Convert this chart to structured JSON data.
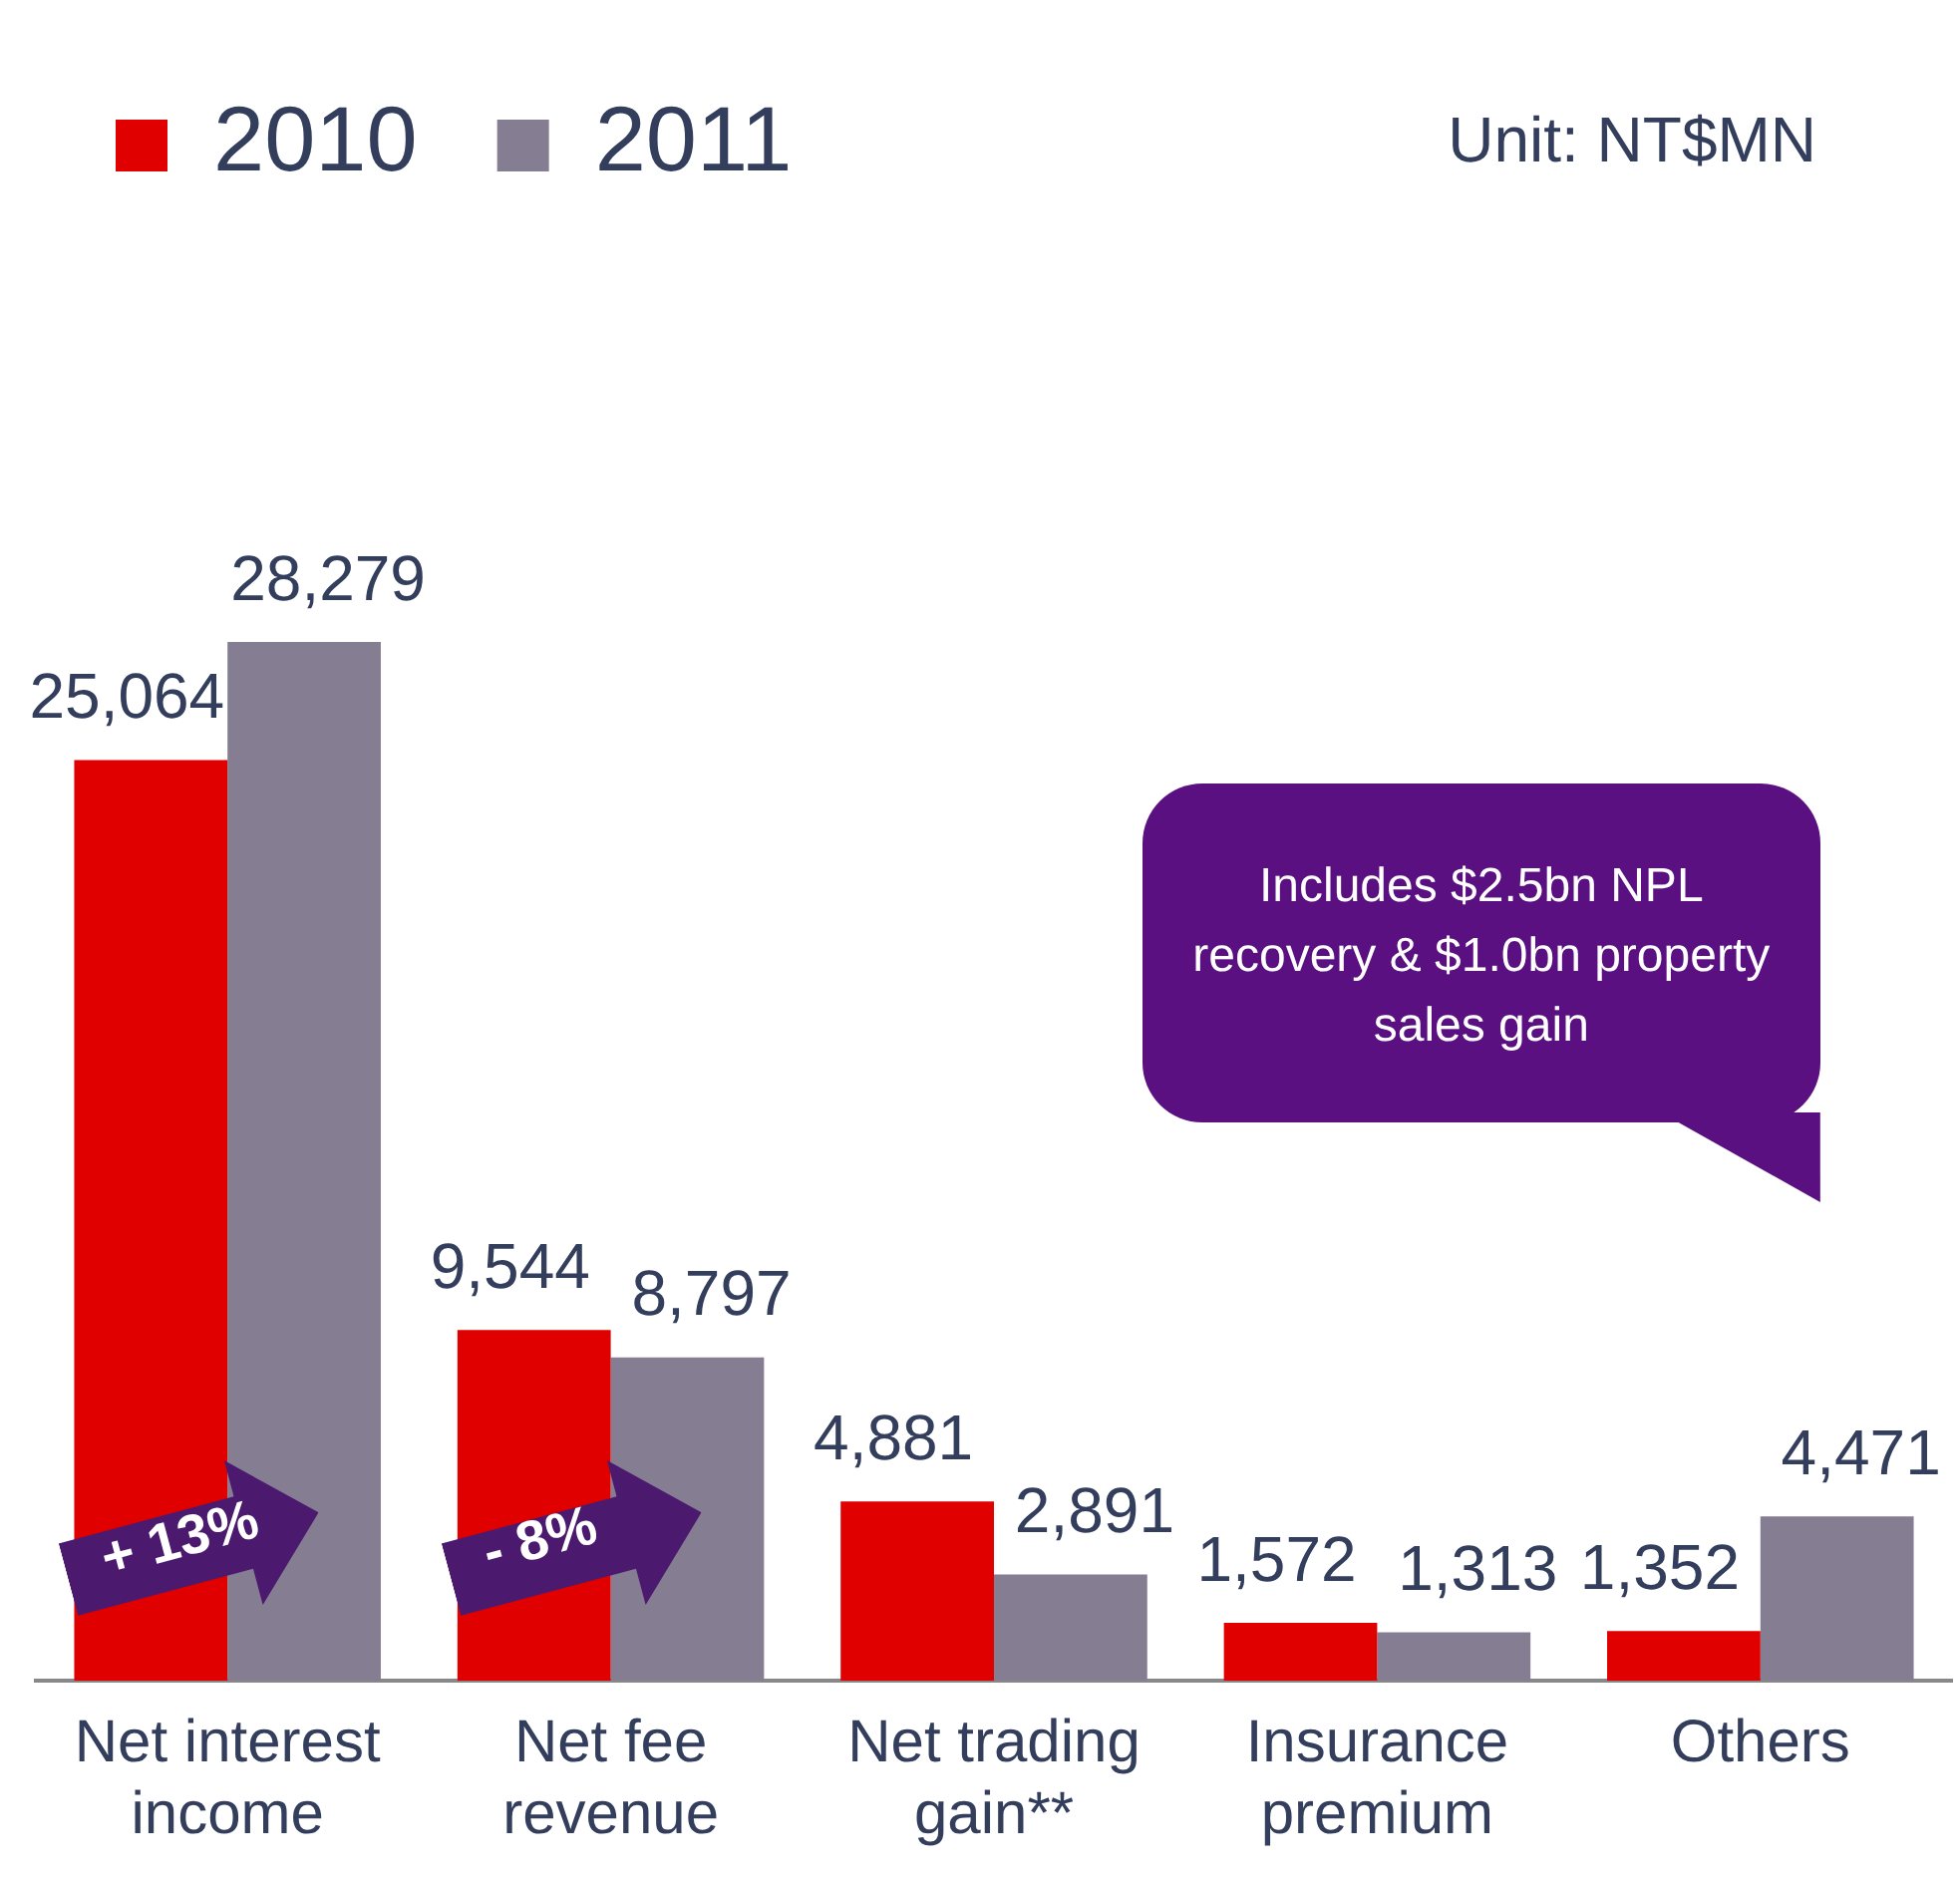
{
  "chart_data": {
    "type": "bar",
    "categories": [
      "Net interest income",
      "Net fee revenue",
      "Net trading gain**",
      "Insurance premium",
      "Others"
    ],
    "series": [
      {
        "name": "2010",
        "color": "#e00000",
        "values": [
          25064,
          9544,
          4881,
          1572,
          1352
        ],
        "value_labels": [
          "25,064",
          "9,544",
          "4,881",
          "1,572",
          "1,352"
        ]
      },
      {
        "name": "2011",
        "color": "#857d92",
        "values": [
          28279,
          8797,
          2891,
          1313,
          4471
        ],
        "value_labels": [
          "28,279",
          "8,797",
          "2,891",
          "1,313",
          "4,471"
        ]
      }
    ],
    "legend": "top left",
    "grid": false,
    "annotations": [
      "Unit: NT$MN",
      "+ 13%",
      "- 8%",
      "Includes $2.5bn NPL recovery & $1.0bn property sales gain"
    ]
  }
}
